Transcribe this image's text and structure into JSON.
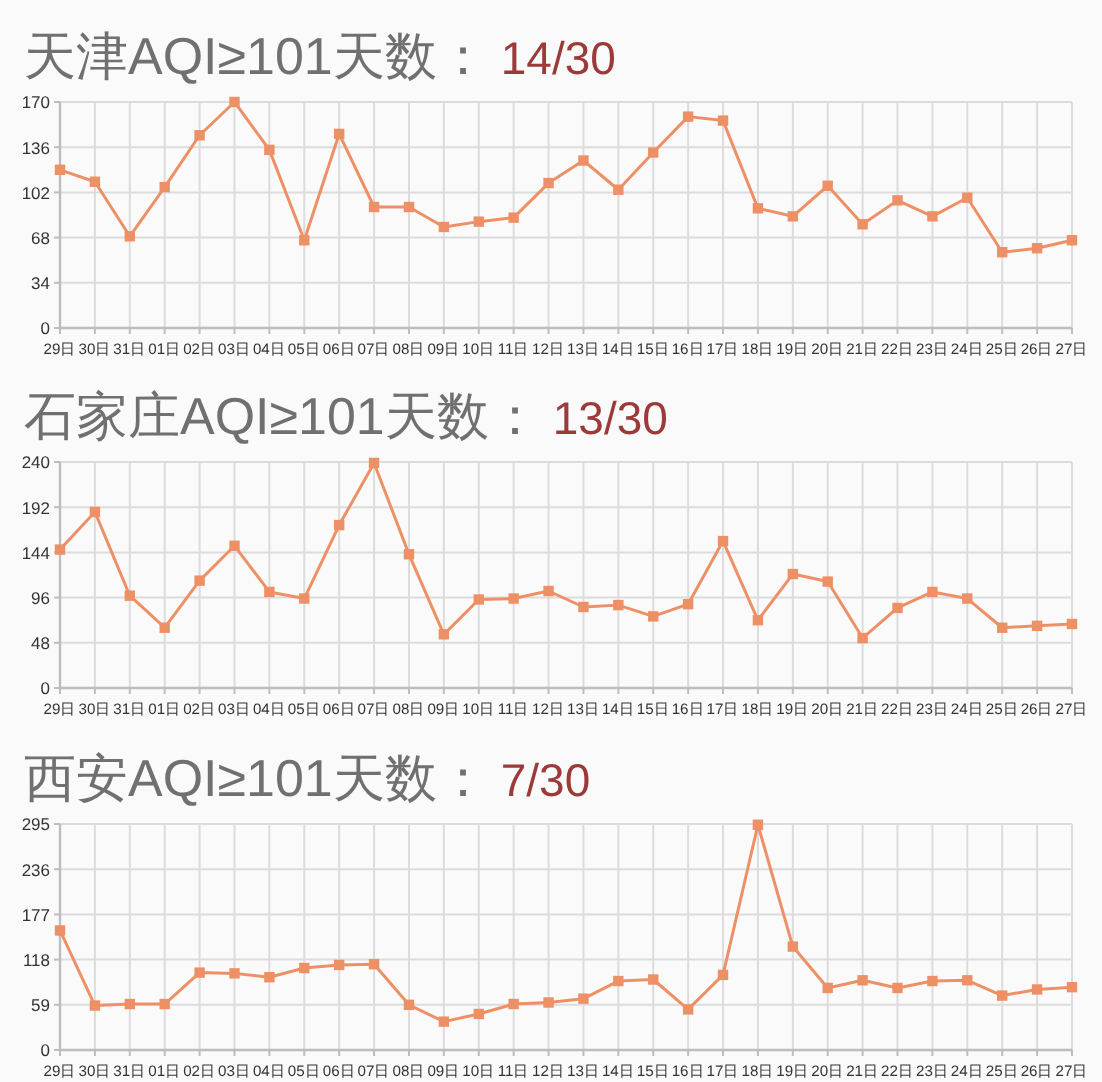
{
  "chart_data": [
    {
      "type": "line",
      "title": "天津AQI≥101天数：",
      "annotations": [
        "14/30"
      ],
      "categories": [
        "29日",
        "30日",
        "31日",
        "01日",
        "02日",
        "03日",
        "04日",
        "05日",
        "06日",
        "07日",
        "08日",
        "09日",
        "10日",
        "11日",
        "12日",
        "13日",
        "14日",
        "15日",
        "16日",
        "17日",
        "18日",
        "19日",
        "20日",
        "21日",
        "22日",
        "23日",
        "24日",
        "25日",
        "26日",
        "27日"
      ],
      "values": [
        119,
        110,
        69,
        106,
        145,
        170,
        134,
        66,
        146,
        91,
        91,
        76,
        80,
        83,
        109,
        126,
        104,
        132,
        159,
        156,
        90,
        84,
        107,
        78,
        96,
        84,
        98,
        57,
        60,
        66
      ],
      "color": "#ee9066",
      "marker": "square",
      "ylim": [
        0,
        170
      ],
      "yticks": [
        0,
        34,
        68,
        102,
        136,
        170
      ],
      "grid": true
    },
    {
      "type": "line",
      "title": "石家庄AQI≥101天数：",
      "annotations": [
        "13/30"
      ],
      "categories": [
        "29日",
        "30日",
        "31日",
        "01日",
        "02日",
        "03日",
        "04日",
        "05日",
        "06日",
        "07日",
        "08日",
        "09日",
        "10日",
        "11日",
        "12日",
        "13日",
        "14日",
        "15日",
        "16日",
        "17日",
        "18日",
        "19日",
        "20日",
        "21日",
        "22日",
        "23日",
        "24日",
        "25日",
        "26日",
        "27日"
      ],
      "values": [
        147,
        187,
        98,
        64,
        114,
        151,
        102,
        95,
        173,
        239,
        142,
        57,
        94,
        95,
        103,
        86,
        88,
        76,
        89,
        156,
        72,
        121,
        113,
        53,
        85,
        102,
        95,
        64,
        66,
        68
      ],
      "color": "#ee9066",
      "marker": "square",
      "ylim": [
        0,
        240
      ],
      "yticks": [
        0,
        48,
        96,
        144,
        192,
        240
      ],
      "grid": true
    },
    {
      "type": "line",
      "title": "西安AQI≥101天数：",
      "annotations": [
        "7/30"
      ],
      "categories": [
        "29日",
        "30日",
        "31日",
        "01日",
        "02日",
        "03日",
        "04日",
        "05日",
        "06日",
        "07日",
        "08日",
        "09日",
        "10日",
        "11日",
        "12日",
        "13日",
        "14日",
        "15日",
        "16日",
        "17日",
        "18日",
        "19日",
        "20日",
        "21日",
        "22日",
        "23日",
        "24日",
        "25日",
        "26日",
        "27日"
      ],
      "values": [
        156,
        58,
        60,
        60,
        101,
        100,
        95,
        107,
        111,
        112,
        59,
        37,
        47,
        60,
        62,
        67,
        90,
        92,
        53,
        98,
        294,
        135,
        81,
        91,
        81,
        90,
        91,
        71,
        79,
        82
      ],
      "color": "#ee9066",
      "marker": "square",
      "ylim": [
        0,
        295
      ],
      "yticks": [
        0,
        59,
        118,
        177,
        236,
        295
      ],
      "grid": true
    }
  ]
}
